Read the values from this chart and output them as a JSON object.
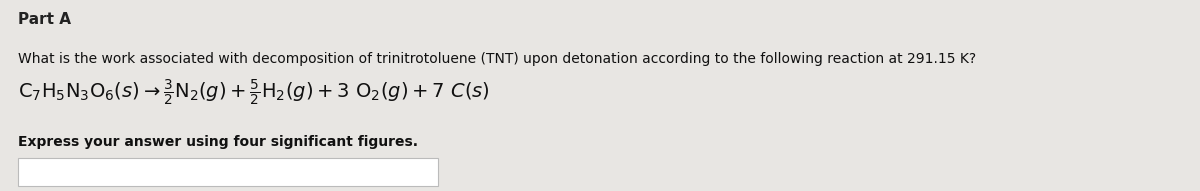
{
  "background_color": "#e8e6e3",
  "part_label": "Part A",
  "question_text": "What is the work associated with decomposition of trinitrotoluene (TNT) upon detonation according to the following reaction at 291.15 K?",
  "express_text": "Express your answer using four significant figures.",
  "fig_width": 12.0,
  "fig_height": 1.91,
  "dpi": 100,
  "part_fontsize": 11,
  "question_fontsize": 10,
  "eq_fontsize": 14,
  "express_fontsize": 10,
  "box_color": "white",
  "box_edge_color": "#bbbbbb"
}
